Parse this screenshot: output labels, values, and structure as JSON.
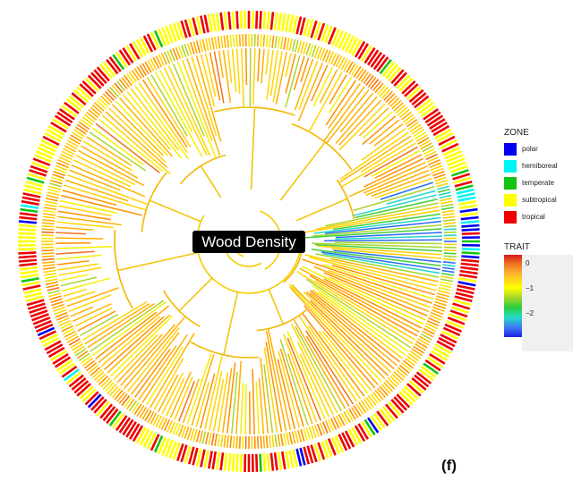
{
  "center_label": "Wood Density",
  "panel_label": "(f)",
  "zone_legend": {
    "title": "ZONE",
    "items": [
      {
        "label": "polar",
        "color": "#0000ee"
      },
      {
        "label": "hemiboreal",
        "color": "#00f5f5"
      },
      {
        "label": "temperate",
        "color": "#12c512"
      },
      {
        "label": "subtropical",
        "color": "#ffff00"
      },
      {
        "label": "tropical",
        "color": "#ee0000"
      }
    ]
  },
  "trait_legend": {
    "title": "TRAIT",
    "ticks": [
      "0",
      "−1",
      "−2"
    ],
    "tick_values": [
      0,
      -1,
      -2
    ],
    "range": [
      -2.7,
      0.35
    ]
  }
}
